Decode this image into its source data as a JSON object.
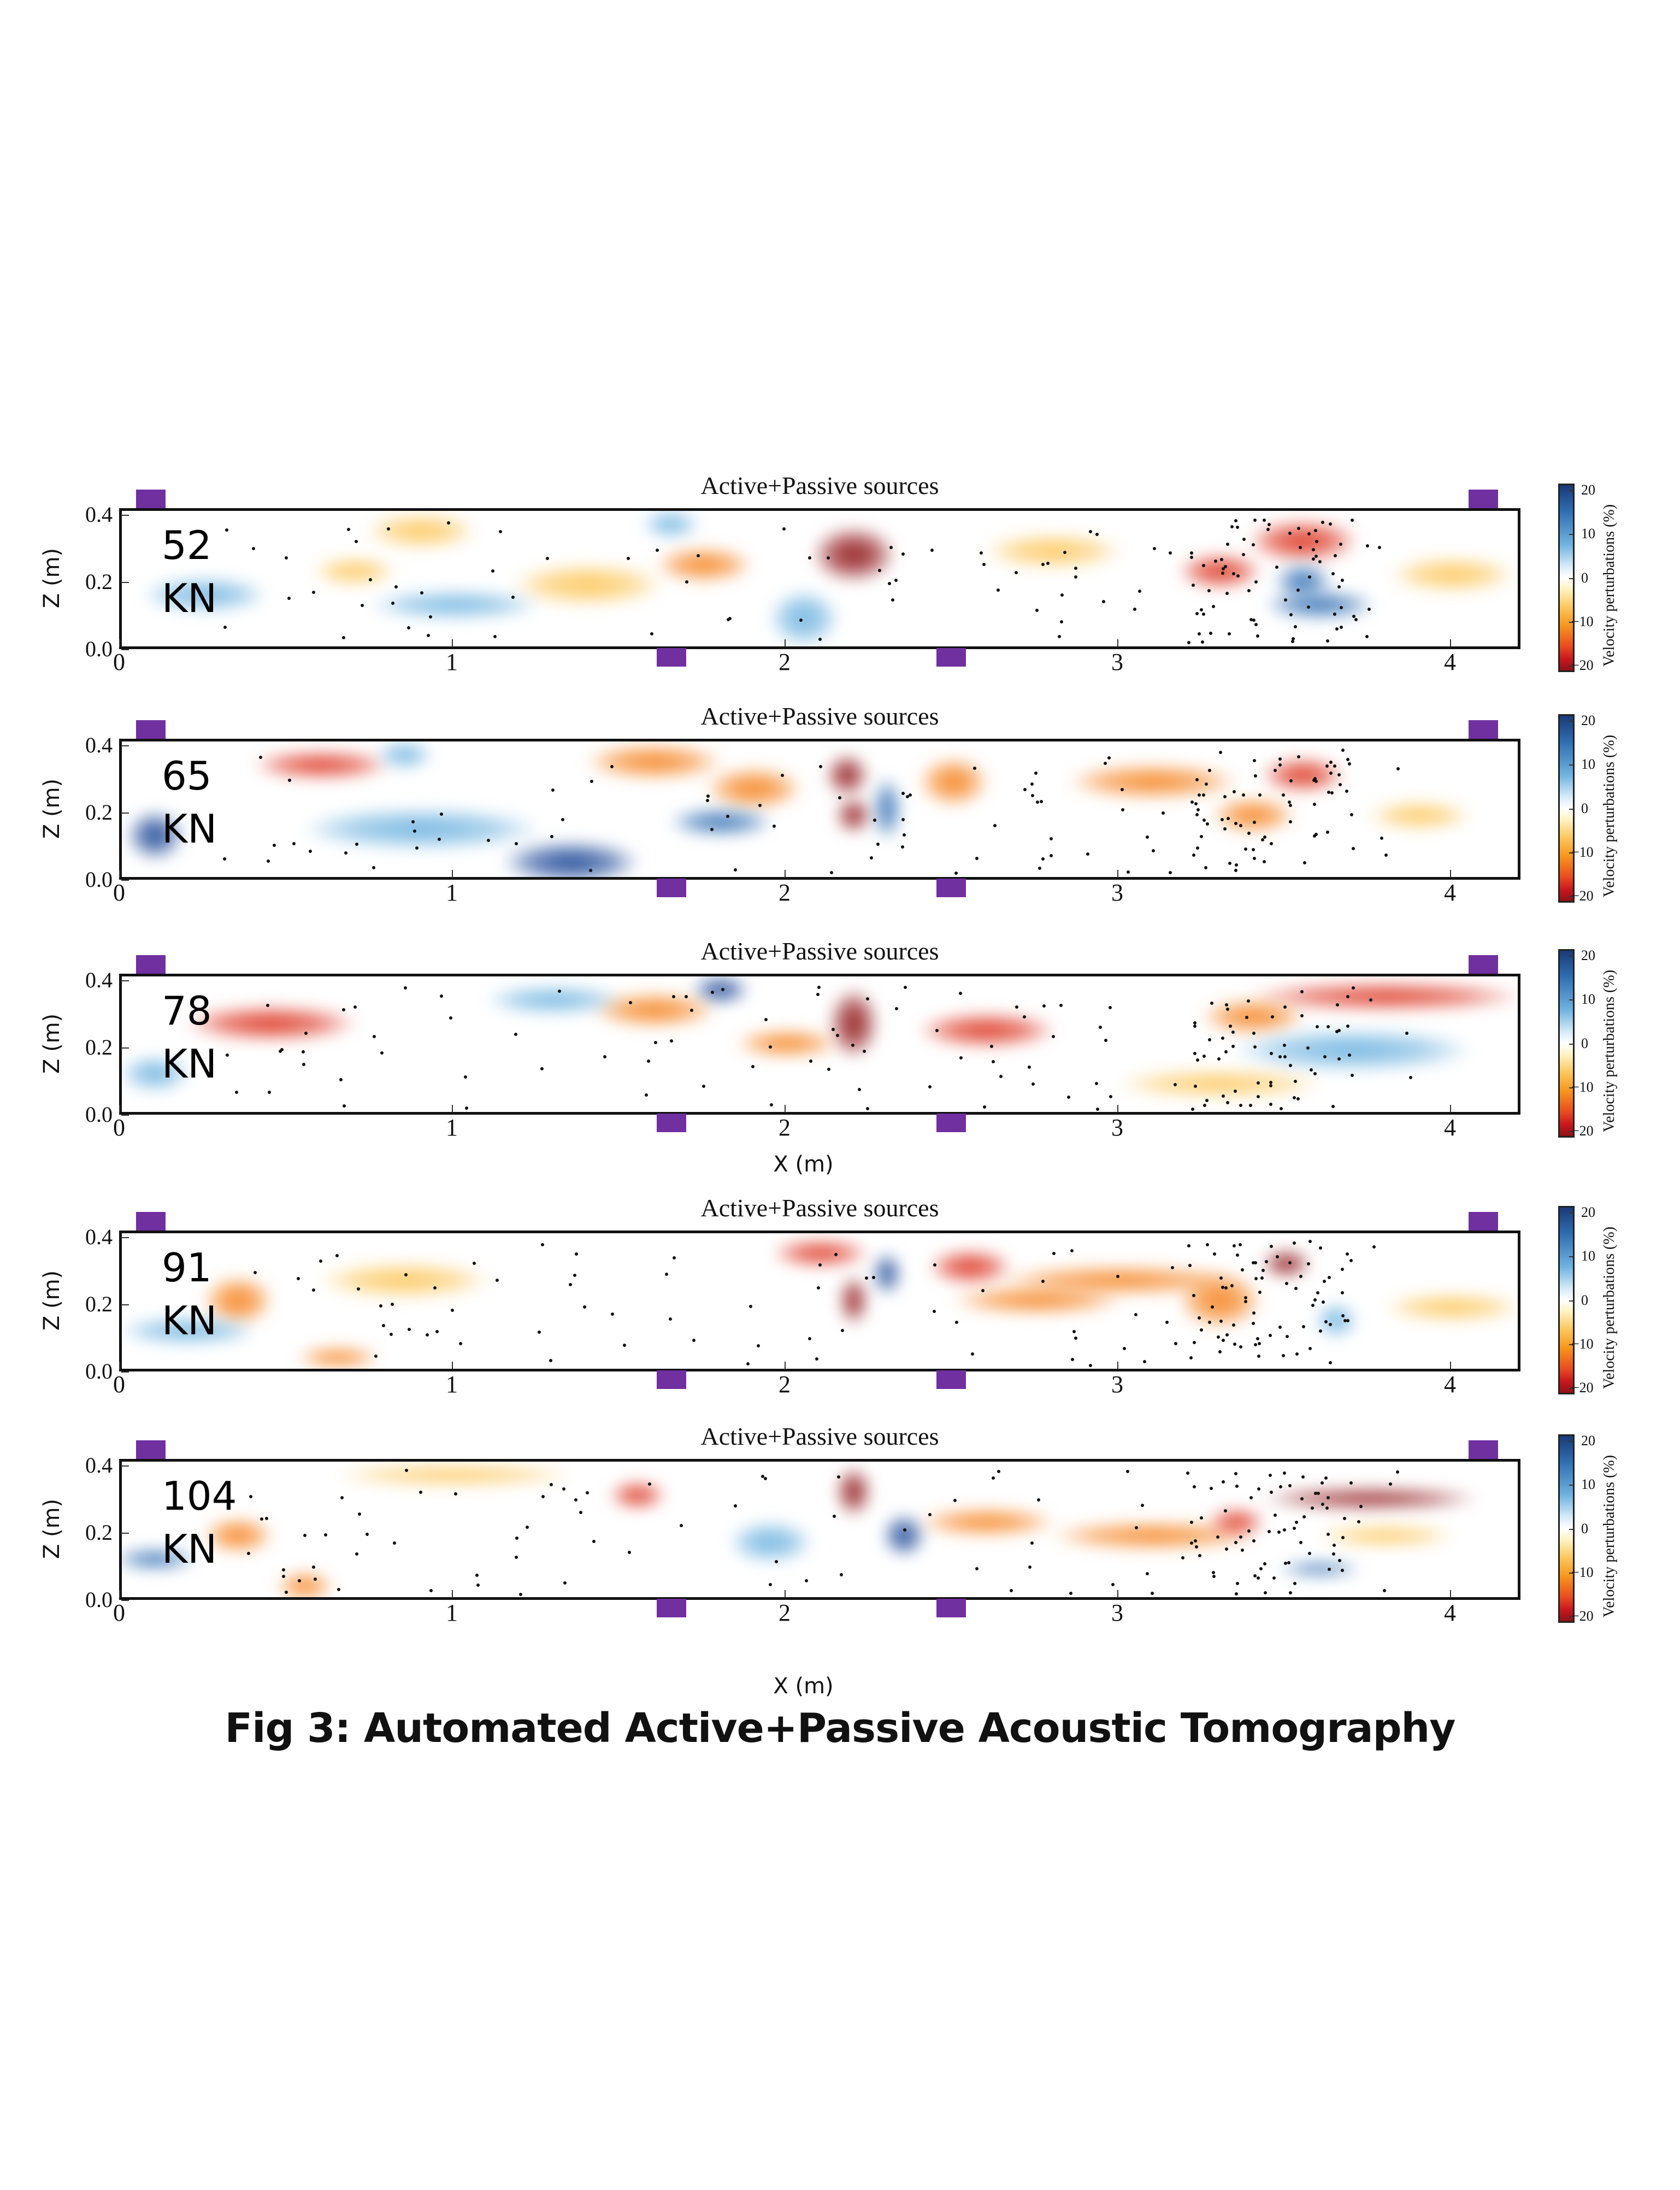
{
  "figure": {
    "caption": "Fig 3: Automated Active+Passive Acoustic Tomography",
    "xlabel": "X (m)",
    "ylabel": "Z (m)",
    "colorbar_label": "Velocity perturbations (%)",
    "colorbar_ticks": [
      "20",
      "10",
      "0",
      "−10",
      "−20"
    ],
    "sensor_color": "#7030a0"
  },
  "chart_data": {
    "type": "heatmap",
    "title": "Active+Passive sources",
    "xlabel": "X (m)",
    "ylabel": "Z (m)",
    "x_ticks": [
      0,
      1,
      2,
      3,
      4
    ],
    "y_ticks": [
      "0.0",
      "0.2",
      "0.4"
    ],
    "xlim": [
      0,
      4.18
    ],
    "ylim": [
      0,
      0.42
    ],
    "colorbar": {
      "label": "Velocity perturbations (%)",
      "range": [
        -20,
        20
      ],
      "ticks": [
        20,
        10,
        0,
        -10,
        -20
      ],
      "colormap": "RdYlBu"
    },
    "sensors_x_m": {
      "top": [
        0.07,
        4.1
      ],
      "bottom": [
        1.66,
        2.5
      ]
    },
    "panels": [
      {
        "load": "52",
        "unit": "KN",
        "title": "Active+Passive sources",
        "features": [
          {
            "x": 2.2,
            "z": 0.29,
            "rx": 0.12,
            "rz": 0.08,
            "v": -20
          },
          {
            "x": 1.75,
            "z": 0.26,
            "rx": 0.14,
            "rz": 0.05,
            "v": -13
          },
          {
            "x": 3.55,
            "z": 0.33,
            "rx": 0.16,
            "rz": 0.06,
            "v": -15
          },
          {
            "x": 3.3,
            "z": 0.24,
            "rx": 0.12,
            "rz": 0.05,
            "v": -14
          },
          {
            "x": 3.6,
            "z": 0.14,
            "rx": 0.16,
            "rz": 0.04,
            "v": 14
          },
          {
            "x": 3.55,
            "z": 0.21,
            "rx": 0.08,
            "rz": 0.05,
            "v": 12
          },
          {
            "x": 4.0,
            "z": 0.23,
            "rx": 0.18,
            "rz": 0.05,
            "v": -8
          },
          {
            "x": 0.9,
            "z": 0.36,
            "rx": 0.16,
            "rz": 0.05,
            "v": -9
          },
          {
            "x": 0.7,
            "z": 0.24,
            "rx": 0.12,
            "rz": 0.04,
            "v": -7
          },
          {
            "x": 0.25,
            "z": 0.17,
            "rx": 0.18,
            "rz": 0.05,
            "v": 6
          },
          {
            "x": 1.65,
            "z": 0.38,
            "rx": 0.08,
            "rz": 0.04,
            "v": 10
          },
          {
            "x": 2.05,
            "z": 0.1,
            "rx": 0.1,
            "rz": 0.08,
            "v": 7
          },
          {
            "x": 2.8,
            "z": 0.3,
            "rx": 0.2,
            "rz": 0.05,
            "v": -9
          },
          {
            "x": 1.4,
            "z": 0.2,
            "rx": 0.22,
            "rz": 0.06,
            "v": -8
          },
          {
            "x": 1.0,
            "z": 0.14,
            "rx": 0.25,
            "rz": 0.04,
            "v": 5
          }
        ]
      },
      {
        "load": "65",
        "unit": "KN",
        "title": "Active+Passive sources",
        "features": [
          {
            "x": 0.6,
            "z": 0.35,
            "rx": 0.2,
            "rz": 0.04,
            "v": -16
          },
          {
            "x": 0.1,
            "z": 0.14,
            "rx": 0.08,
            "rz": 0.07,
            "v": 20
          },
          {
            "x": 1.35,
            "z": 0.06,
            "rx": 0.2,
            "rz": 0.06,
            "v": 16
          },
          {
            "x": 0.9,
            "z": 0.16,
            "rx": 0.35,
            "rz": 0.06,
            "v": 7
          },
          {
            "x": 1.6,
            "z": 0.36,
            "rx": 0.2,
            "rz": 0.05,
            "v": -13
          },
          {
            "x": 2.18,
            "z": 0.32,
            "rx": 0.06,
            "rz": 0.06,
            "v": -20
          },
          {
            "x": 2.2,
            "z": 0.2,
            "rx": 0.05,
            "rz": 0.05,
            "v": -18
          },
          {
            "x": 1.9,
            "z": 0.28,
            "rx": 0.14,
            "rz": 0.06,
            "v": -13
          },
          {
            "x": 1.8,
            "z": 0.18,
            "rx": 0.15,
            "rz": 0.04,
            "v": 12
          },
          {
            "x": 2.3,
            "z": 0.22,
            "rx": 0.04,
            "rz": 0.09,
            "v": 12
          },
          {
            "x": 2.5,
            "z": 0.3,
            "rx": 0.1,
            "rz": 0.07,
            "v": -12
          },
          {
            "x": 3.1,
            "z": 0.3,
            "rx": 0.25,
            "rz": 0.05,
            "v": -12
          },
          {
            "x": 3.55,
            "z": 0.32,
            "rx": 0.12,
            "rz": 0.05,
            "v": -16
          },
          {
            "x": 3.4,
            "z": 0.2,
            "rx": 0.12,
            "rz": 0.05,
            "v": -12
          },
          {
            "x": 3.9,
            "z": 0.2,
            "rx": 0.15,
            "rz": 0.04,
            "v": -6
          },
          {
            "x": 0.85,
            "z": 0.38,
            "rx": 0.08,
            "rz": 0.04,
            "v": 10
          }
        ]
      },
      {
        "load": "78",
        "unit": "KN",
        "title": "Active+Passive sources",
        "features": [
          {
            "x": 0.45,
            "z": 0.28,
            "rx": 0.25,
            "rz": 0.05,
            "v": -14
          },
          {
            "x": 0.1,
            "z": 0.13,
            "rx": 0.1,
            "rz": 0.05,
            "v": 8
          },
          {
            "x": 1.8,
            "z": 0.38,
            "rx": 0.08,
            "rz": 0.04,
            "v": 18
          },
          {
            "x": 1.6,
            "z": 0.32,
            "rx": 0.18,
            "rz": 0.05,
            "v": -12
          },
          {
            "x": 2.2,
            "z": 0.28,
            "rx": 0.07,
            "rz": 0.1,
            "v": -18
          },
          {
            "x": 2.0,
            "z": 0.22,
            "rx": 0.15,
            "rz": 0.04,
            "v": -12
          },
          {
            "x": 2.6,
            "z": 0.26,
            "rx": 0.2,
            "rz": 0.05,
            "v": -14
          },
          {
            "x": 3.8,
            "z": 0.36,
            "rx": 0.4,
            "rz": 0.04,
            "v": -16
          },
          {
            "x": 3.4,
            "z": 0.3,
            "rx": 0.15,
            "rz": 0.05,
            "v": -12
          },
          {
            "x": 3.7,
            "z": 0.2,
            "rx": 0.35,
            "rz": 0.06,
            "v": 6
          },
          {
            "x": 3.3,
            "z": 0.1,
            "rx": 0.3,
            "rz": 0.04,
            "v": -5
          },
          {
            "x": 1.3,
            "z": 0.35,
            "rx": 0.2,
            "rz": 0.04,
            "v": 5
          }
        ]
      },
      {
        "load": "91",
        "unit": "KN",
        "title": "Active+Passive sources",
        "features": [
          {
            "x": 0.35,
            "z": 0.22,
            "rx": 0.1,
            "rz": 0.07,
            "v": -12
          },
          {
            "x": 0.65,
            "z": 0.05,
            "rx": 0.12,
            "rz": 0.03,
            "v": -12
          },
          {
            "x": 0.85,
            "z": 0.28,
            "rx": 0.25,
            "rz": 0.05,
            "v": -9
          },
          {
            "x": 2.1,
            "z": 0.36,
            "rx": 0.14,
            "rz": 0.04,
            "v": -16
          },
          {
            "x": 2.2,
            "z": 0.22,
            "rx": 0.04,
            "rz": 0.07,
            "v": -18
          },
          {
            "x": 2.3,
            "z": 0.3,
            "rx": 0.04,
            "rz": 0.06,
            "v": 18
          },
          {
            "x": 2.55,
            "z": 0.32,
            "rx": 0.12,
            "rz": 0.05,
            "v": -14
          },
          {
            "x": 2.75,
            "z": 0.22,
            "rx": 0.25,
            "rz": 0.04,
            "v": -12
          },
          {
            "x": 3.0,
            "z": 0.28,
            "rx": 0.35,
            "rz": 0.04,
            "v": -10
          },
          {
            "x": 3.5,
            "z": 0.33,
            "rx": 0.07,
            "rz": 0.04,
            "v": -18
          },
          {
            "x": 3.3,
            "z": 0.22,
            "rx": 0.12,
            "rz": 0.08,
            "v": -13
          },
          {
            "x": 3.65,
            "z": 0.16,
            "rx": 0.06,
            "rz": 0.05,
            "v": 8
          },
          {
            "x": 4.0,
            "z": 0.2,
            "rx": 0.2,
            "rz": 0.04,
            "v": -6
          },
          {
            "x": 0.2,
            "z": 0.13,
            "rx": 0.2,
            "rz": 0.04,
            "v": 5
          }
        ]
      },
      {
        "load": "104",
        "unit": "KN",
        "title": "Active+Passive sources",
        "features": [
          {
            "x": 0.1,
            "z": 0.13,
            "rx": 0.12,
            "rz": 0.03,
            "v": 12
          },
          {
            "x": 0.35,
            "z": 0.2,
            "rx": 0.1,
            "rz": 0.05,
            "v": -12
          },
          {
            "x": 0.55,
            "z": 0.05,
            "rx": 0.08,
            "rz": 0.04,
            "v": -10
          },
          {
            "x": 1.55,
            "z": 0.32,
            "rx": 0.08,
            "rz": 0.04,
            "v": -14
          },
          {
            "x": 2.2,
            "z": 0.33,
            "rx": 0.05,
            "rz": 0.07,
            "v": -20
          },
          {
            "x": 2.35,
            "z": 0.2,
            "rx": 0.06,
            "rz": 0.06,
            "v": 20
          },
          {
            "x": 1.95,
            "z": 0.18,
            "rx": 0.12,
            "rz": 0.06,
            "v": 8
          },
          {
            "x": 2.6,
            "z": 0.24,
            "rx": 0.2,
            "rz": 0.04,
            "v": -13
          },
          {
            "x": 3.1,
            "z": 0.2,
            "rx": 0.3,
            "rz": 0.04,
            "v": -10
          },
          {
            "x": 3.35,
            "z": 0.24,
            "rx": 0.08,
            "rz": 0.04,
            "v": -16
          },
          {
            "x": 3.75,
            "z": 0.31,
            "rx": 0.32,
            "rz": 0.03,
            "v": -20
          },
          {
            "x": 3.6,
            "z": 0.1,
            "rx": 0.12,
            "rz": 0.02,
            "v": 14
          },
          {
            "x": 3.8,
            "z": 0.2,
            "rx": 0.2,
            "rz": 0.03,
            "v": -8
          },
          {
            "x": 1.0,
            "z": 0.38,
            "rx": 0.35,
            "rz": 0.03,
            "v": -6
          }
        ]
      }
    ]
  }
}
